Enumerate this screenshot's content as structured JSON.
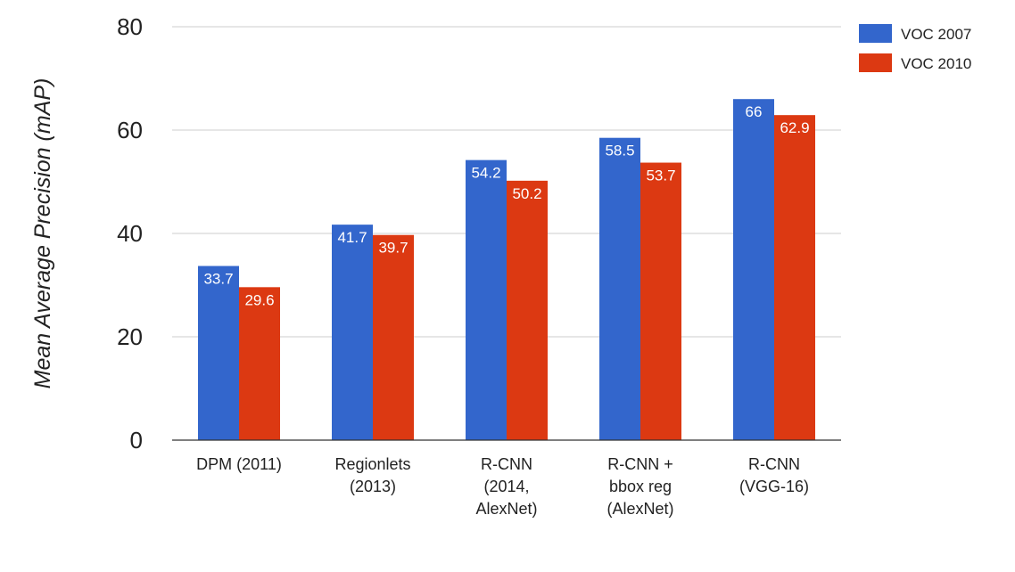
{
  "chart_data": {
    "type": "bar",
    "title": "",
    "xlabel": "",
    "ylabel": "Mean Average Precision (mAP)",
    "ylim": [
      0,
      80
    ],
    "yticks": [
      0,
      20,
      40,
      60,
      80
    ],
    "grid": true,
    "legend_position": "top-right",
    "categories": [
      [
        "DPM (2011)"
      ],
      [
        "Regionlets",
        "(2013)"
      ],
      [
        "R-CNN",
        "(2014,",
        "AlexNet)"
      ],
      [
        "R-CNN +",
        "bbox reg",
        "(AlexNet)"
      ],
      [
        "R-CNN",
        "(VGG-16)"
      ]
    ],
    "series": [
      {
        "name": "VOC 2007",
        "color": "#3366cc",
        "values": [
          33.7,
          41.7,
          54.2,
          58.5,
          66
        ]
      },
      {
        "name": "VOC 2010",
        "color": "#dc3912",
        "values": [
          29.6,
          39.7,
          50.2,
          53.7,
          62.9
        ]
      }
    ],
    "data_labels": [
      [
        "33.7",
        "41.7",
        "54.2",
        "58.5",
        "66"
      ],
      [
        "29.6",
        "39.7",
        "50.2",
        "53.7",
        "62.9"
      ]
    ]
  }
}
